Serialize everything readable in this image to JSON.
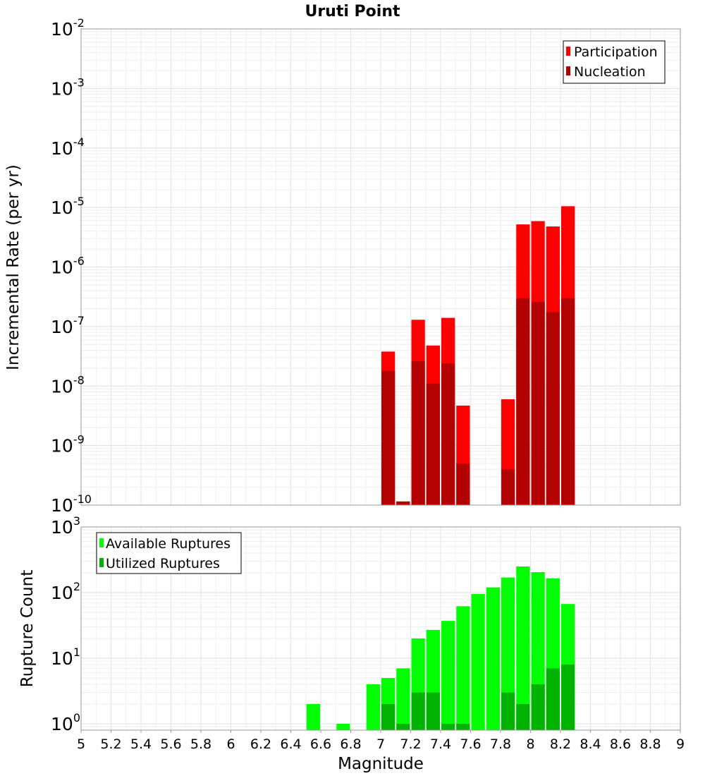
{
  "chart_data": [
    {
      "type": "bar",
      "title": "Uruti Point",
      "xlabel": "",
      "ylabel": "Incremental Rate (per yr)",
      "yscale": "log",
      "ylim": [
        1e-10,
        0.01
      ],
      "xlim": [
        5,
        9
      ],
      "bar_width": 0.1,
      "grid": true,
      "legend_position": "top-right",
      "yticks": [
        {
          "base": "10",
          "exp": "-2",
          "value": 0.01
        },
        {
          "base": "10",
          "exp": "-3",
          "value": 0.001
        },
        {
          "base": "10",
          "exp": "-4",
          "value": 0.0001
        },
        {
          "base": "10",
          "exp": "-5",
          "value": 1e-05
        },
        {
          "base": "10",
          "exp": "-6",
          "value": 1e-06
        },
        {
          "base": "10",
          "exp": "-7",
          "value": 1e-07
        },
        {
          "base": "10",
          "exp": "-8",
          "value": 1e-08
        },
        {
          "base": "10",
          "exp": "-9",
          "value": 1e-09
        },
        {
          "base": "10",
          "exp": "-10",
          "value": 1e-10
        }
      ],
      "series": [
        {
          "name": "Participation",
          "color": "#ff0000",
          "points": [
            {
              "x": 7.05,
              "y": 3.8e-08
            },
            {
              "x": 7.15,
              "y": 1.15e-10
            },
            {
              "x": 7.25,
              "y": 1.3e-07
            },
            {
              "x": 7.35,
              "y": 4.8e-08
            },
            {
              "x": 7.45,
              "y": 1.4e-07
            },
            {
              "x": 7.55,
              "y": 4.7e-09
            },
            {
              "x": 7.85,
              "y": 6e-09
            },
            {
              "x": 7.95,
              "y": 5.2e-06
            },
            {
              "x": 8.05,
              "y": 5.9e-06
            },
            {
              "x": 8.15,
              "y": 4.8e-06
            },
            {
              "x": 8.25,
              "y": 1.05e-05
            }
          ]
        },
        {
          "name": "Nucleation",
          "color": "#b30000",
          "points": [
            {
              "x": 7.05,
              "y": 1.8e-08
            },
            {
              "x": 7.15,
              "y": 1.15e-10
            },
            {
              "x": 7.25,
              "y": 2.6e-08
            },
            {
              "x": 7.35,
              "y": 1.1e-08
            },
            {
              "x": 7.45,
              "y": 2.4e-08
            },
            {
              "x": 7.55,
              "y": 5e-10
            },
            {
              "x": 7.85,
              "y": 4e-10
            },
            {
              "x": 7.95,
              "y": 3e-07
            },
            {
              "x": 8.05,
              "y": 2.6e-07
            },
            {
              "x": 8.15,
              "y": 1.75e-07
            },
            {
              "x": 8.25,
              "y": 3e-07
            }
          ]
        }
      ]
    },
    {
      "type": "bar",
      "title": "",
      "xlabel": "Magnitude",
      "ylabel": "Rupture Count",
      "yscale": "log",
      "ylim": [
        0.8,
        1000
      ],
      "xlim": [
        5,
        9
      ],
      "bar_width": 0.1,
      "grid": true,
      "legend_position": "top-left",
      "xticks": [
        "5",
        "5.2",
        "5.4",
        "5.6",
        "5.8",
        "6",
        "6.2",
        "6.4",
        "6.6",
        "6.8",
        "7",
        "7.2",
        "7.4",
        "7.6",
        "7.8",
        "8",
        "8.2",
        "8.4",
        "8.6",
        "8.8",
        "9"
      ],
      "yticks": [
        {
          "base": "10",
          "exp": "3",
          "value": 1000
        },
        {
          "base": "10",
          "exp": "2",
          "value": 100
        },
        {
          "base": "10",
          "exp": "1",
          "value": 10
        },
        {
          "base": "10",
          "exp": "0",
          "value": 1
        }
      ],
      "series": [
        {
          "name": "Available Ruptures",
          "color": "#00ff00",
          "points": [
            {
              "x": 6.55,
              "y": 2
            },
            {
              "x": 6.75,
              "y": 1
            },
            {
              "x": 6.95,
              "y": 4
            },
            {
              "x": 7.05,
              "y": 5
            },
            {
              "x": 7.15,
              "y": 7
            },
            {
              "x": 7.25,
              "y": 20
            },
            {
              "x": 7.35,
              "y": 27
            },
            {
              "x": 7.45,
              "y": 37
            },
            {
              "x": 7.55,
              "y": 62
            },
            {
              "x": 7.65,
              "y": 95
            },
            {
              "x": 7.75,
              "y": 120
            },
            {
              "x": 7.85,
              "y": 170
            },
            {
              "x": 7.95,
              "y": 250
            },
            {
              "x": 8.05,
              "y": 205
            },
            {
              "x": 8.15,
              "y": 165
            },
            {
              "x": 8.25,
              "y": 67
            }
          ]
        },
        {
          "name": "Utilized Ruptures",
          "color": "#00b300",
          "points": [
            {
              "x": 7.05,
              "y": 2
            },
            {
              "x": 7.15,
              "y": 1
            },
            {
              "x": 7.25,
              "y": 3
            },
            {
              "x": 7.35,
              "y": 3
            },
            {
              "x": 7.45,
              "y": 1
            },
            {
              "x": 7.55,
              "y": 1
            },
            {
              "x": 7.85,
              "y": 3
            },
            {
              "x": 7.95,
              "y": 2
            },
            {
              "x": 8.05,
              "y": 4
            },
            {
              "x": 8.15,
              "y": 7
            },
            {
              "x": 8.25,
              "y": 8
            }
          ]
        }
      ]
    }
  ]
}
